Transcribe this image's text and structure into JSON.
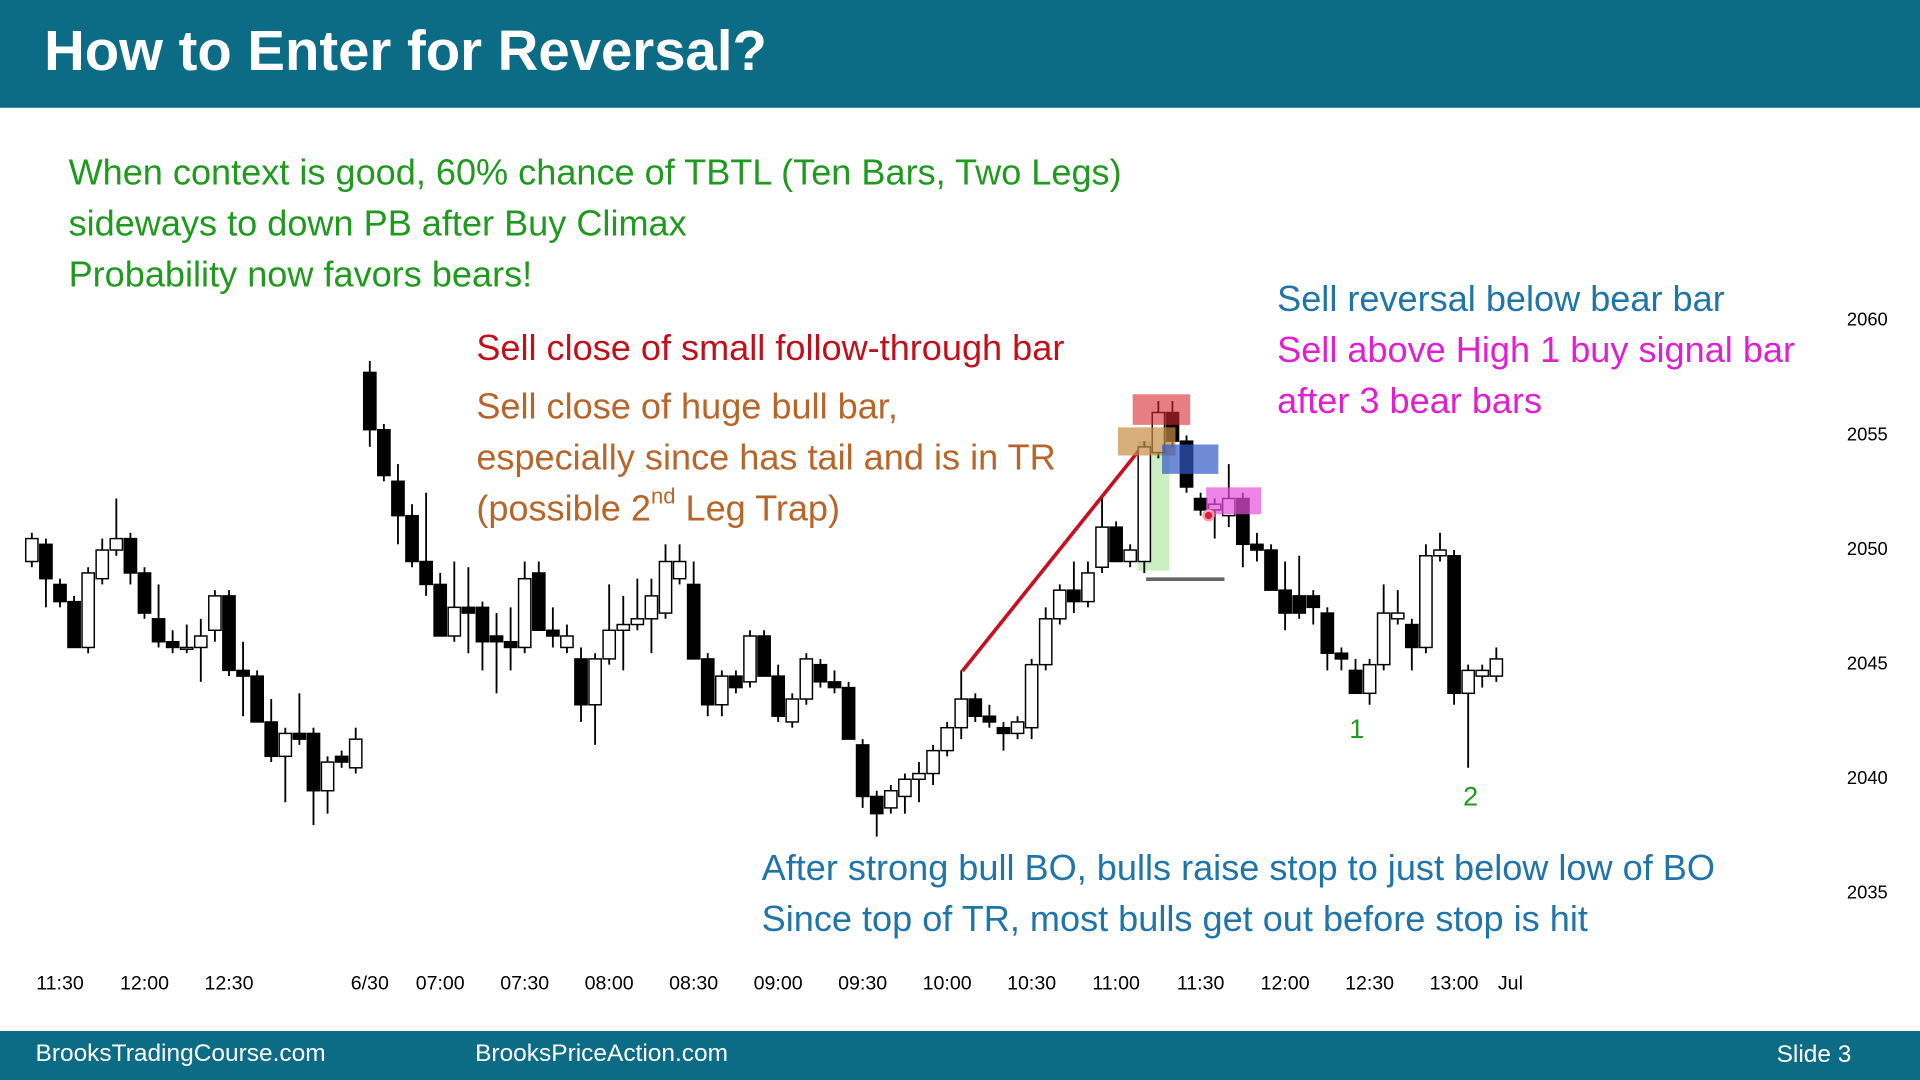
{
  "chart_data": {
    "type": "candlestick",
    "title": "How to Enter for Reversal?",
    "footer": {
      "left": "BrooksTradingCourse.com",
      "middle": "BrooksPriceAction.com",
      "right": "Slide 3"
    },
    "annotations": [
      {
        "color": "#1f9a1f",
        "lines": [
          "When context is good, 60% chance of TBTL (Ten Bars, Two Legs)",
          "sideways to down PB after Buy Climax",
          "Probability now favors bears!"
        ]
      },
      {
        "color": "#c0101c",
        "lines": [
          "Sell close of small follow-through bar"
        ]
      },
      {
        "color": "#b8652a",
        "lines": [
          "Sell close of huge bull bar,",
          "especially since has tail and is in TR",
          {
            "text": "(possible 2",
            "sup": "nd",
            "after": " Leg Trap)"
          }
        ]
      },
      {
        "color": "#1f74a8",
        "lines": [
          "Sell reversal below bear bar"
        ]
      },
      {
        "color": "#e020d0",
        "lines": [
          "Sell above High 1 buy signal bar",
          "after 3 bear bars"
        ]
      },
      {
        "color": "#1f74a8",
        "lines": [
          "After strong bull BO, bulls raise stop to just below low of BO",
          "Since top of TR, most bulls get out before stop is hit"
        ]
      }
    ],
    "labels": [
      {
        "text": "1",
        "color": "#1f9a1f"
      },
      {
        "text": "2",
        "color": "#1f9a1f"
      }
    ],
    "categories": [
      null,
      null,
      "11:30",
      null,
      null,
      null,
      null,
      null,
      "12:00",
      null,
      null,
      null,
      null,
      null,
      "12:30",
      null,
      null,
      null,
      null,
      null,
      null,
      null,
      null,
      null,
      "6/30",
      null,
      null,
      null,
      null,
      "07:00",
      null,
      null,
      null,
      null,
      null,
      "07:30",
      null,
      null,
      null,
      null,
      null,
      "08:00",
      null,
      null,
      null,
      null,
      null,
      "08:30",
      null,
      null,
      null,
      null,
      null,
      "09:00",
      null,
      null,
      null,
      null,
      null,
      "09:30",
      null,
      null,
      null,
      null,
      null,
      "10:00",
      null,
      null,
      null,
      null,
      null,
      "10:30",
      null,
      null,
      null,
      null,
      null,
      "11:00",
      null,
      null,
      null,
      null,
      null,
      "11:30",
      null,
      null,
      null,
      null,
      null,
      "12:00",
      null,
      null,
      null,
      null,
      null,
      "12:30",
      null,
      null,
      null,
      null,
      null,
      "13:00",
      null,
      null,
      null,
      "Jul"
    ],
    "open": [
      2049.5,
      2050.25,
      2048.5,
      2047.75,
      2045.75,
      2048.75,
      2050,
      2050.5,
      2049,
      2047,
      2046,
      2045.75,
      2045.75,
      2046.5,
      2048,
      2044.75,
      2044.5,
      2042.5,
      2041,
      2042,
      2042,
      2039.5,
      2041,
      2040.5,
      2057.75,
      2055.25,
      2053,
      2051.5,
      2049.5,
      2048.5,
      2046.25,
      2047.5,
      2047.5,
      2046.25,
      2046,
      2045.75,
      2049,
      2046.5,
      2045.75,
      2045.25,
      2043.25,
      2045.25,
      2046.5,
      2046.75,
      2047,
      2047.25,
      2048.75,
      2048.5,
      2045.25,
      2043.25,
      2044.5,
      2044.25,
      2046.25,
      2044.5,
      2042.5,
      2043.5,
      2045,
      2044.25,
      2044,
      2041.5,
      2039.25,
      2038.75,
      2039.25,
      2040,
      2040.25,
      2041.25,
      2042.25,
      2043.5,
      2042.75,
      2042.25,
      2042,
      2042.25,
      2045,
      2047,
      2048.25,
      2047.75,
      2049.25,
      2051,
      2049.5,
      2049.5,
      2054.25,
      2056,
      2054.75,
      2052.25,
      2051.75,
      2051.5,
      2052.25,
      2050.25,
      2050,
      2048.25,
      2048,
      2048,
      2047.25,
      2045.5,
      2044.75,
      2043.75,
      2045,
      2047,
      2046.75,
      2045.75,
      2049.75,
      2049.75,
      2043.75,
      2044.5,
      2044.5,
      null
    ],
    "high": [
      2050.75,
      2050.5,
      2048.75,
      2048,
      2049.25,
      2050.5,
      2052.25,
      2050.75,
      2049.25,
      2048.5,
      2046.5,
      2046.75,
      2047,
      2048.25,
      2048.25,
      2046,
      2044.75,
      2043.5,
      2042.25,
      2043.75,
      2042.25,
      2041,
      2041.25,
      2042.25,
      2058.25,
      2055.5,
      2053.75,
      2052,
      2052.5,
      2049,
      2049.5,
      2049.25,
      2047.75,
      2047.25,
      2047.5,
      2049.5,
      2049.5,
      2047.5,
      2046.75,
      2045.75,
      2045.5,
      2048.5,
      2048,
      2048.75,
      2048.75,
      2050.25,
      2050.25,
      2049.5,
      2045.5,
      2044.75,
      2044.75,
      2046.5,
      2046.5,
      2045,
      2043.75,
      2045.5,
      2045.25,
      2044.75,
      2044.25,
      2041.75,
      2039.5,
      2039.75,
      2040.25,
      2040.75,
      2041.5,
      2042.5,
      2044.75,
      2043.75,
      2043.25,
      2042.5,
      2042.75,
      2045.25,
      2047.5,
      2048.5,
      2049.5,
      2049.5,
      2052.25,
      2051.25,
      2050.25,
      2054.75,
      2056.5,
      2056.5,
      2055,
      2052.5,
      2052.25,
      2053.75,
      2052.5,
      2050.75,
      2050.25,
      2049.5,
      2049.75,
      2048.25,
      2047.5,
      2045.75,
      2045.25,
      2045.25,
      2048.5,
      2048.25,
      2047,
      2050.25,
      2050.75,
      2050,
      2045,
      2045,
      2045.75,
      null
    ],
    "low": [
      2049.25,
      2047.5,
      2047.5,
      2045.75,
      2045.5,
      2048.5,
      2049.75,
      2048.5,
      2047,
      2045.75,
      2045.5,
      2045.5,
      2044.25,
      2046,
      2044.5,
      2042.75,
      2042.5,
      2040.75,
      2039,
      2041.5,
      2038,
      2038.5,
      2040.5,
      2040.25,
      2054.5,
      2053,
      2050.25,
      2049.25,
      2048,
      2046.25,
      2046,
      2045.5,
      2044.75,
      2043.75,
      2044.75,
      2045.5,
      2046.5,
      2045.75,
      2045.5,
      2042.5,
      2041.5,
      2045,
      2044.75,
      2046.5,
      2045.5,
      2047,
      2048.5,
      2045.25,
      2042.75,
      2042.75,
      2043.75,
      2044,
      2044.5,
      2042.5,
      2042.25,
      2043.25,
      2044,
      2043.75,
      2041.75,
      2038.75,
      2037.5,
      2038.5,
      2038.5,
      2039,
      2039.75,
      2041,
      2041.75,
      2042.5,
      2042.25,
      2041.25,
      2041.75,
      2041.75,
      2044.75,
      2046.75,
      2047.25,
      2047.5,
      2049,
      2049.5,
      2049.25,
      2049,
      2054,
      2054.5,
      2052.5,
      2051.5,
      2050.5,
      2051,
      2049.25,
      2049.5,
      2048.25,
      2046.5,
      2047,
      2046.75,
      2044.75,
      2044.75,
      2043.75,
      2043.25,
      2044.75,
      2046.75,
      2044.75,
      2045.5,
      2049.5,
      2043.25,
      2040.5,
      2044,
      2044.25,
      null
    ],
    "close": [
      2050.5,
      2048.75,
      2047.75,
      2045.75,
      2049,
      2050,
      2050.5,
      2049,
      2047.25,
      2046,
      2045.75,
      2045.75,
      2046.25,
      2048,
      2044.75,
      2044.5,
      2042.5,
      2041,
      2042,
      2041.75,
      2039.5,
      2040.75,
      2040.75,
      2041.75,
      2055.25,
      2053.25,
      2051.5,
      2049.5,
      2048.5,
      2046.25,
      2047.5,
      2047.25,
      2046,
      2046,
      2045.75,
      2048.75,
      2046.5,
      2046.25,
      2046.25,
      2043.25,
      2045.25,
      2046.5,
      2046.75,
      2047,
      2048,
      2049.5,
      2049.5,
      2045.25,
      2043.25,
      2044.5,
      2044,
      2046.25,
      2044.5,
      2042.75,
      2043.5,
      2045.25,
      2044.25,
      2044,
      2041.75,
      2039.25,
      2038.5,
      2039.5,
      2040,
      2040.25,
      2041.25,
      2042.25,
      2043.5,
      2042.75,
      2042.5,
      2042,
      2042.5,
      2045,
      2047,
      2048.25,
      2047.75,
      2049,
      2051,
      2049.5,
      2050,
      2054.5,
      2056,
      2054.75,
      2052.75,
      2051.75,
      2052,
      2052.25,
      2050.25,
      2050,
      2048.25,
      2047.25,
      2047.25,
      2047.5,
      2045.5,
      2045.25,
      2043.75,
      2045,
      2047.25,
      2047.25,
      2045.75,
      2049.75,
      2050,
      2043.75,
      2044.75,
      2044.75,
      2045.25,
      null
    ],
    "up_color": "#ffffff",
    "down_color": "#000000",
    "ylim": [
      2032,
      2061
    ],
    "yticks": [
      2035,
      2040,
      2045,
      2050,
      2055,
      2060
    ],
    "grid": false
  }
}
